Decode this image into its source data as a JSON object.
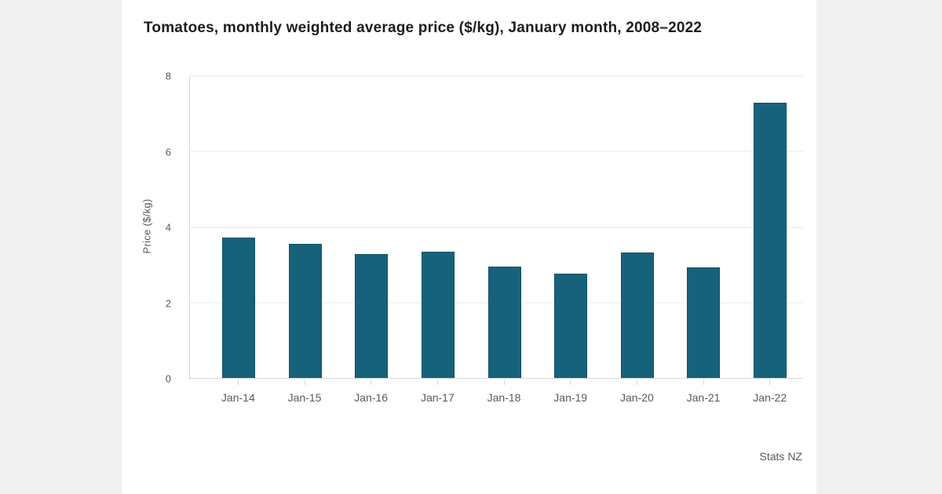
{
  "source": "Stats NZ",
  "colors": {
    "background": "#f0f0f0",
    "card": "#ffffff",
    "bar": "#17627b",
    "bar_border": "#105065",
    "grid": "#e8e8e8",
    "axis": "#d7d7d7",
    "muted": "#58595b",
    "title": "#1d1d1d"
  },
  "chart_data": {
    "type": "bar",
    "title": "Tomatoes, monthly weighted average price ($/kg), January month, 2008–2022",
    "categories": [
      "Jan-14",
      "Jan-15",
      "Jan-16",
      "Jan-17",
      "Jan-18",
      "Jan-19",
      "Jan-20",
      "Jan-21",
      "Jan-22"
    ],
    "values": [
      3.73,
      3.56,
      3.28,
      3.35,
      2.96,
      2.77,
      3.32,
      2.94,
      7.29
    ],
    "xlabel": "",
    "ylabel": "Price ($/kg)",
    "ylim": [
      0,
      8
    ],
    "yticks": [
      0,
      2,
      4,
      6,
      8
    ],
    "grid": true,
    "legend": false
  }
}
